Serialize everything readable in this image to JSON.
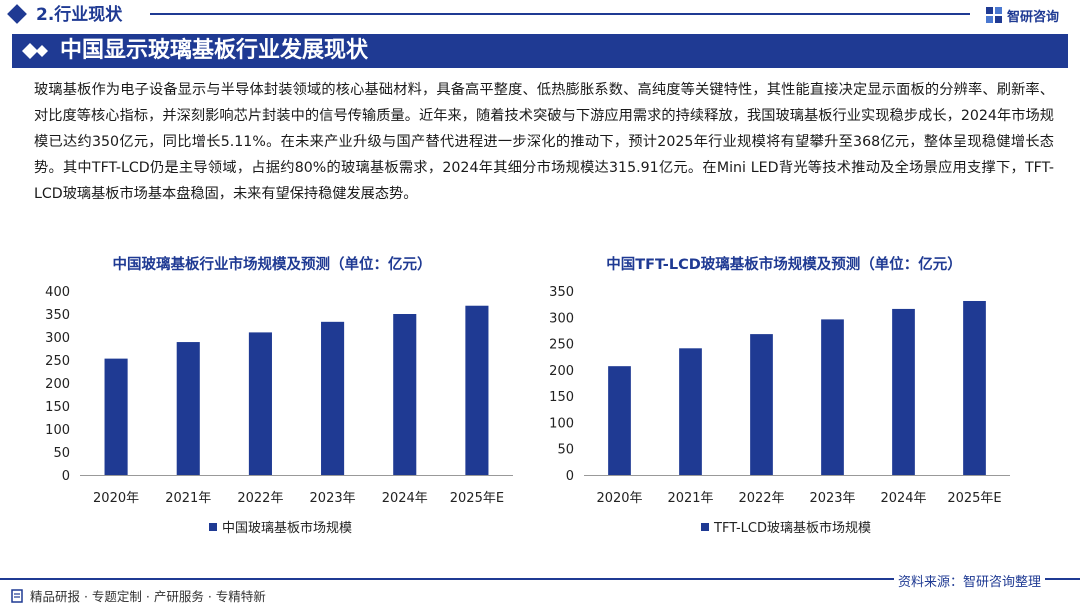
{
  "header": {
    "section": "2.行业现状",
    "logo_text": "智研咨询",
    "title": "中国显示玻璃基板行业发展现状"
  },
  "description": "玻璃基板作为电子设备显示与半导体封装领域的核心基础材料，具备高平整度、低热膨胀系数、高纯度等关键特性，其性能直接决定显示面板的分辨率、刷新率、对比度等核心指标，并深刻影响芯片封装中的信号传输质量。近年来，随着技术突破与下游应用需求的持续释放，我国玻璃基板行业实现稳步成长，2024年市场规模已达约350亿元，同比增长5.11%。在未来产业升级与国产替代进程进一步深化的推动下，预计2025年行业规模将有望攀升至368亿元，整体呈现稳健增长态势。其中TFT-LCD仍是主导领域，占据约80%的玻璃基板需求，2024年其细分市场规模达315.91亿元。在Mini LED背光等技术推动及全场景应用支撑下，TFT-LCD玻璃基板市场基本盘稳固，未来有望保持稳健发展态势。",
  "chart_data": [
    {
      "type": "bar",
      "title": "中国玻璃基板行业市场规模及预测（单位：亿元）",
      "categories": [
        "2020年",
        "2021年",
        "2022年",
        "2023年",
        "2024年",
        "2025年E"
      ],
      "series": [
        {
          "name": "中国玻璃基板市场规模",
          "values": [
            253,
            289,
            310,
            333,
            350,
            368
          ]
        }
      ],
      "ylim": [
        0,
        400
      ],
      "yticks": [
        0,
        50,
        100,
        150,
        200,
        250,
        300,
        350,
        400
      ],
      "grid": false,
      "legend_position": "bottom",
      "color": "#1f3a93"
    },
    {
      "type": "bar",
      "title": "中国TFT-LCD玻璃基板市场规模及预测（单位：亿元）",
      "categories": [
        "2020年",
        "2021年",
        "2022年",
        "2023年",
        "2024年",
        "2025年E"
      ],
      "series": [
        {
          "name": "TFT-LCD玻璃基板市场规模",
          "values": [
            207,
            241,
            268,
            296,
            315.91,
            331
          ]
        }
      ],
      "ylim": [
        0,
        350
      ],
      "yticks": [
        0,
        50,
        100,
        150,
        200,
        250,
        300,
        350
      ],
      "grid": false,
      "legend_position": "bottom",
      "color": "#1f3a93"
    }
  ],
  "footer": {
    "source": "资料来源：智研咨询整理",
    "slogan": "精品研报 · 专题定制 · 产研服务 · 专精特新"
  }
}
